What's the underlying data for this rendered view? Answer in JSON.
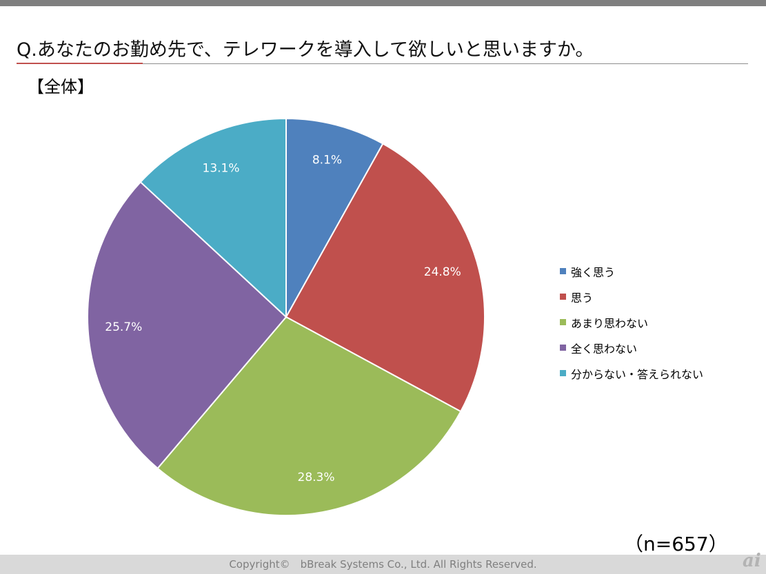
{
  "title": "Q.あなたのお勤め先で、テレワークを導入して欲しいと思いますか。",
  "subtitle": "【全体】",
  "sample_size": "（n=657）",
  "footer": "Copyright©　bBreak Systems Co., Ltd.  All Rights Reserved.",
  "logo_text": "ai",
  "chart_data": {
    "type": "pie",
    "title": "",
    "legend_position": "right",
    "categories": [
      "強く思う",
      "思う",
      "あまり思わない",
      "全く思わない",
      "分からない・答えられない"
    ],
    "values": [
      8.1,
      24.8,
      28.3,
      25.7,
      13.1
    ],
    "data_labels": [
      "8.1%",
      "24.8%",
      "28.3%",
      "25.7%",
      "13.1%"
    ],
    "colors": [
      "#4f81bd",
      "#c0504d",
      "#9bbb59",
      "#8064a2",
      "#4bacc6"
    ],
    "start": "12 o'clock",
    "direction": "clockwise"
  }
}
